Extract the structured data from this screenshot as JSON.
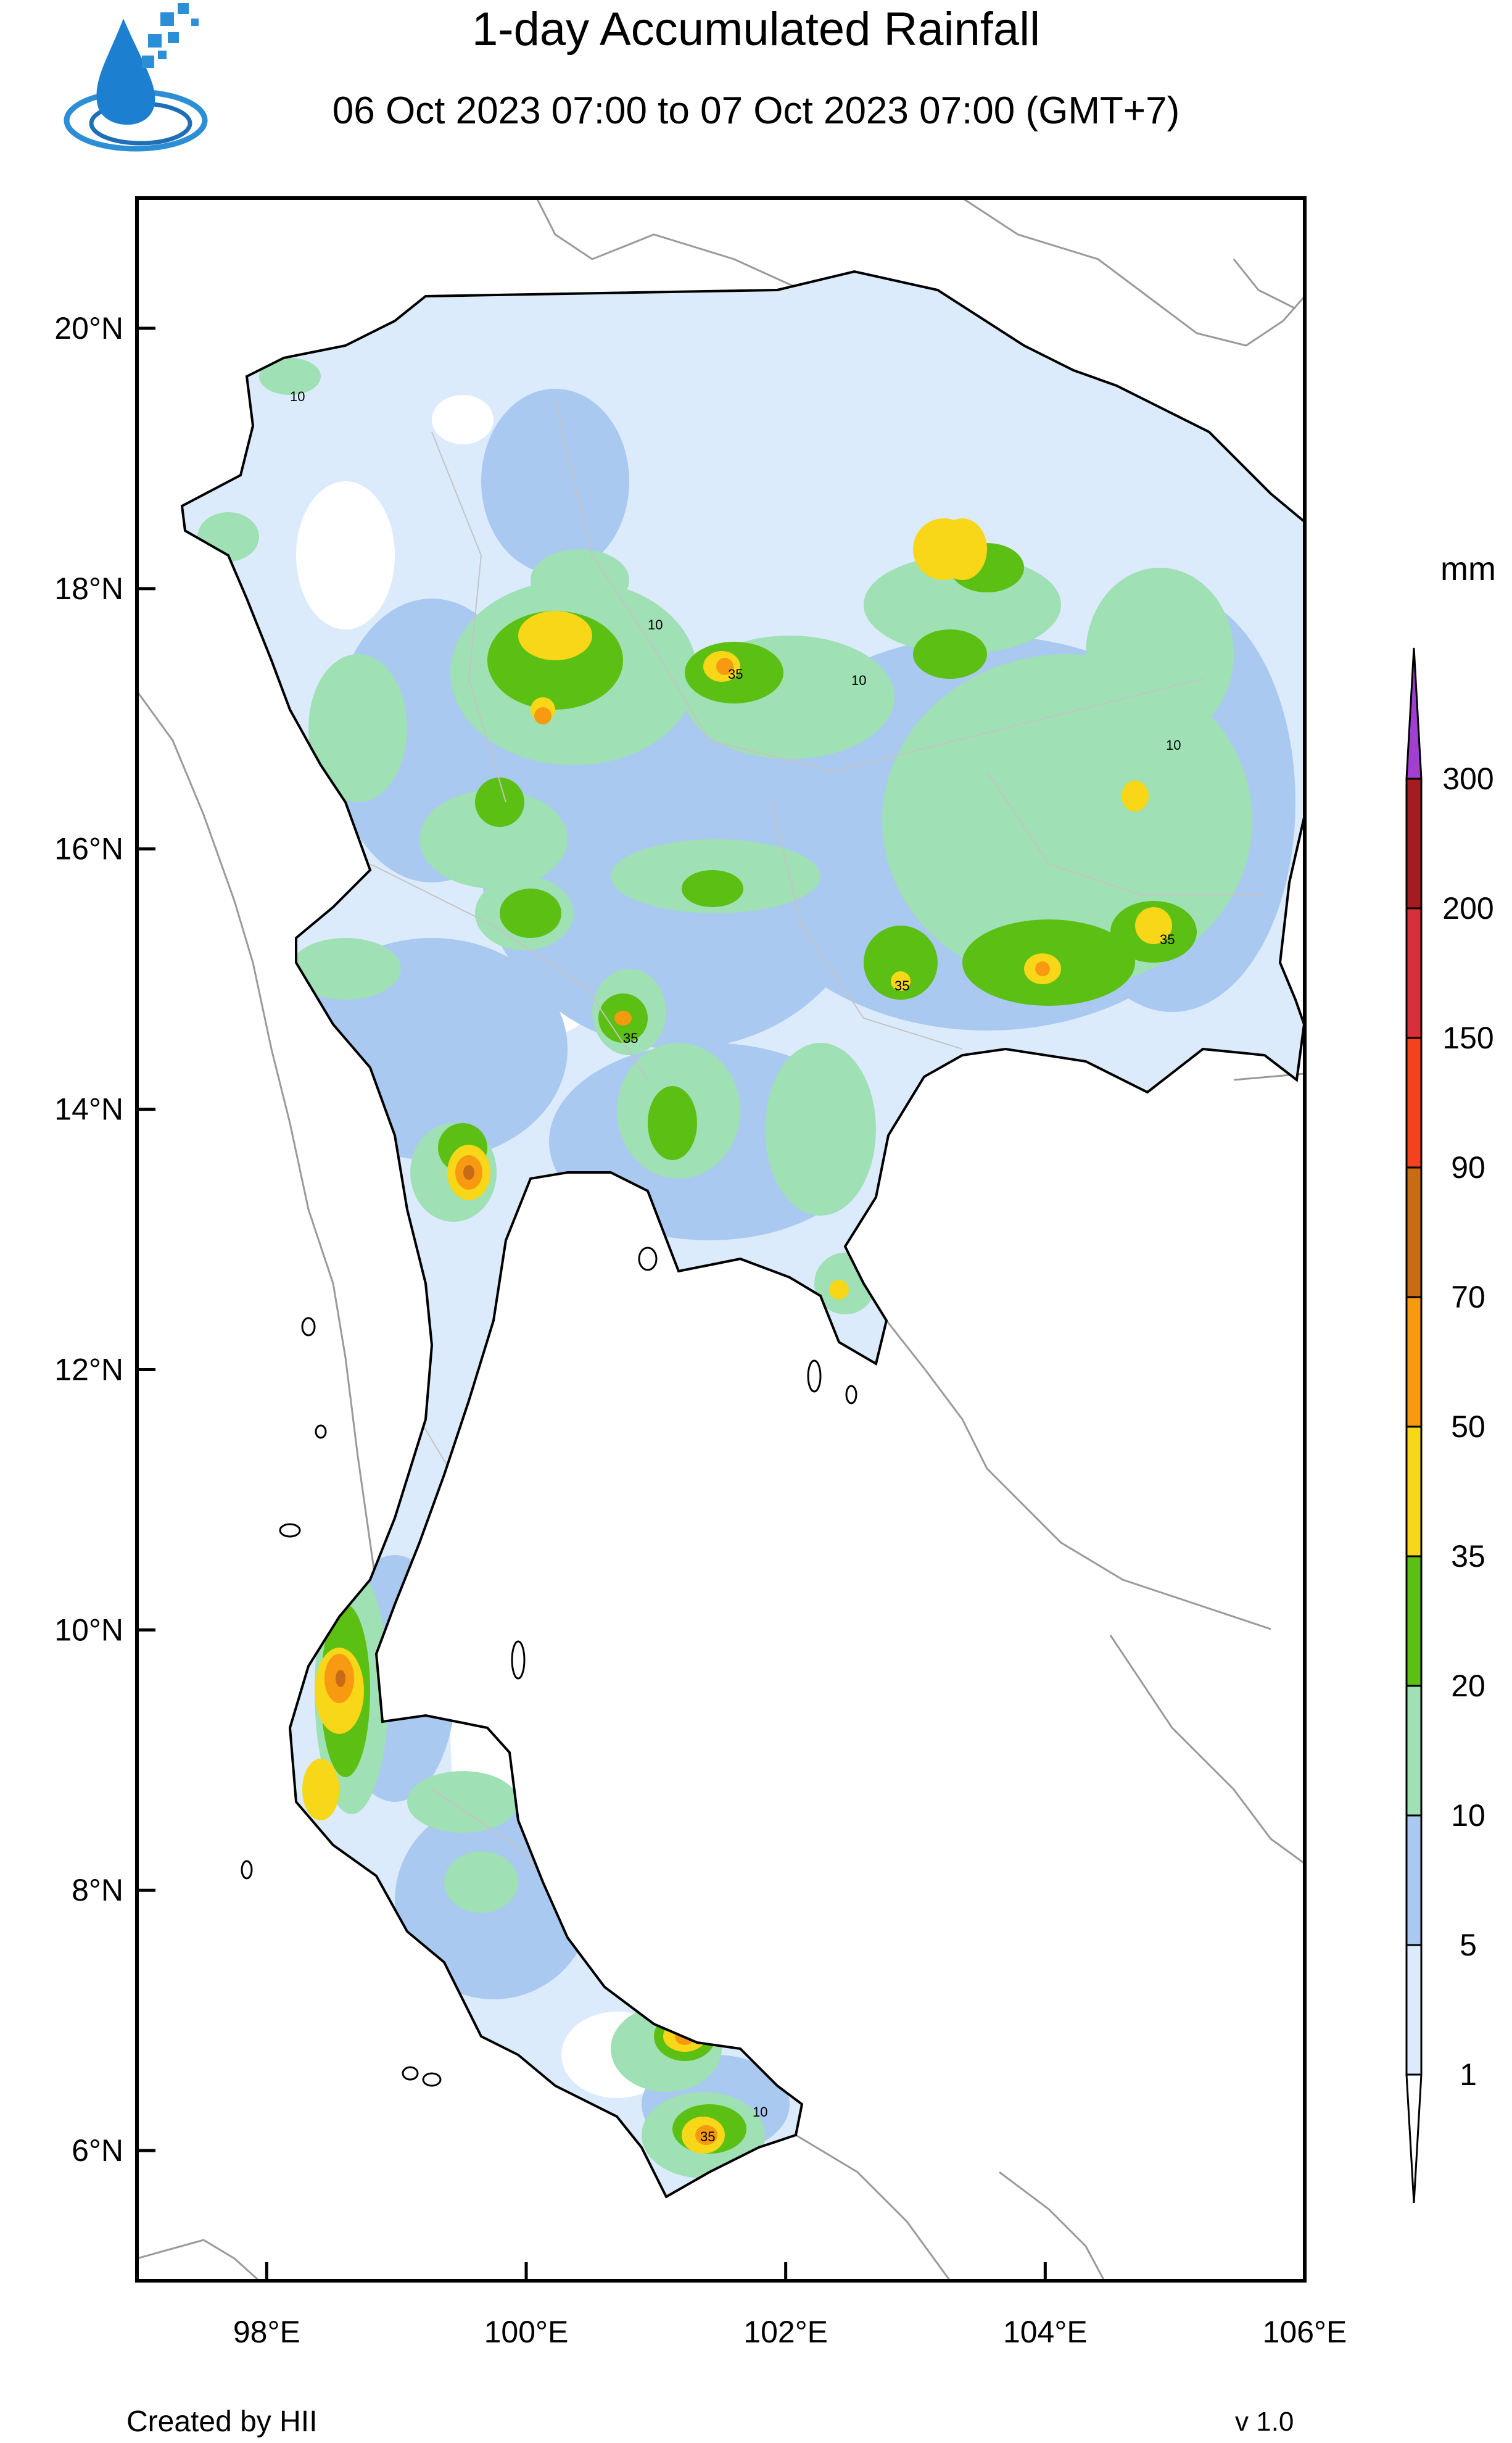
{
  "title": "1-day Accumulated Rainfall",
  "subtitle": "06 Oct 2023 07:00 to 07 Oct 2023 07:00 (GMT+7)",
  "map": {
    "lon_range": [
      97,
      106
    ],
    "lat_range": [
      5,
      21
    ],
    "y_ticks": [
      {
        "lat": 20,
        "label": "20°N"
      },
      {
        "lat": 18,
        "label": "18°N"
      },
      {
        "lat": 16,
        "label": "16°N"
      },
      {
        "lat": 14,
        "label": "14°N"
      },
      {
        "lat": 12,
        "label": "12°N"
      },
      {
        "lat": 10,
        "label": "10°N"
      },
      {
        "lat": 8,
        "label": "8°N"
      },
      {
        "lat": 6,
        "label": "6°N"
      }
    ],
    "x_ticks": [
      {
        "lon": 98,
        "label": "98°E"
      },
      {
        "lon": 100,
        "label": "100°E"
      },
      {
        "lon": 102,
        "label": "102°E"
      },
      {
        "lon": 104,
        "label": "104°E"
      },
      {
        "lon": 106,
        "label": "106°E"
      }
    ],
    "contour_labels": [
      "10",
      "35"
    ]
  },
  "colorbar": {
    "unit": "mm",
    "levels": [
      "1",
      "5",
      "10",
      "20",
      "35",
      "50",
      "70",
      "90",
      "150",
      "200",
      "300"
    ],
    "colors": [
      "#dcebfb",
      "#a9c9f1",
      "#9fe0b4",
      "#5bbf14",
      "#f8d618",
      "#f79a12",
      "#c96a14",
      "#f4431c",
      "#d8303a",
      "#a21c22",
      "#7b1e1e",
      "#a23fd0"
    ],
    "low_color": "#ffffff"
  },
  "rain_colors": {
    "c1": "#dcebfb",
    "c5": "#a9c9f1",
    "c10": "#9fe0b4",
    "c20": "#5bbf14",
    "c35": "#f8d618",
    "c50": "#f79a12",
    "c70": "#c96a14"
  },
  "footer": {
    "credit": "Created by HII",
    "version": "v 1.0"
  }
}
